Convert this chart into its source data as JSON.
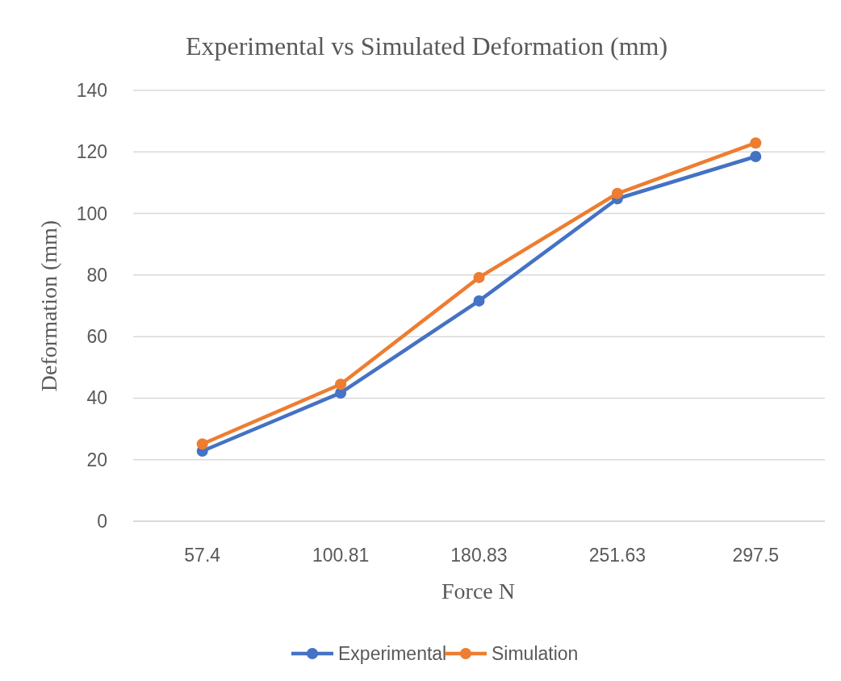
{
  "chart_data": {
    "type": "line",
    "title": "Experimental vs Simulated Deformation (mm)",
    "xlabel": "Force N",
    "ylabel": "Deformation (mm)",
    "categories": [
      "57.4",
      "100.81",
      "180.83",
      "251.63",
      "297.5"
    ],
    "series": [
      {
        "name": "Experimental",
        "color": "#4472c4",
        "values": [
          22.8,
          41.7,
          71.6,
          104.8,
          118.5
        ]
      },
      {
        "name": "Simulation",
        "color": "#ed7d31",
        "values": [
          25.1,
          44.5,
          79.2,
          106.5,
          122.9
        ]
      }
    ],
    "ylim": [
      0,
      140
    ],
    "yticks": [
      0,
      20,
      40,
      60,
      80,
      100,
      120,
      140
    ],
    "grid": "y",
    "legend": "bottom",
    "marker": "circle",
    "line_style": "solid"
  }
}
